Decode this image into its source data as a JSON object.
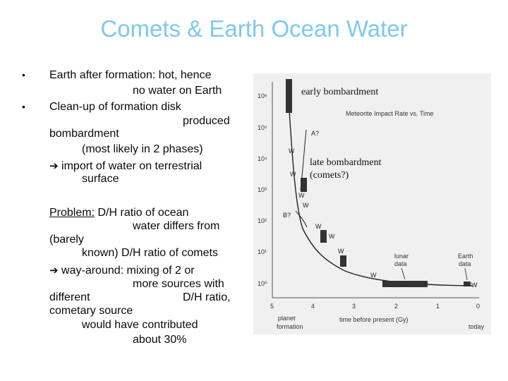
{
  "title": "Comets & Earth Ocean Water",
  "bullets": [
    {
      "lines": [
        "Earth after formation: hot, hence",
        "no water on Earth"
      ]
    },
    {
      "lines": [
        "Clean-up of formation disk",
        "produced",
        "bombardment",
        "(most likely in 2 phases)",
        "import of water on terrestrial",
        "surface"
      ]
    }
  ],
  "problem": {
    "label": "Problem:",
    "lines": [
      "D/H ratio of ocean",
      "water differs from",
      "(barely",
      "known) D/H ratio of comets",
      "way-around: mixing of 2 or",
      "more sources with",
      "different",
      "D/H ratio,",
      "cometary source",
      "would have contributed",
      "about 30%"
    ]
  },
  "figure": {
    "annotations": {
      "early": "early bombardment",
      "late_1": "late bombardment",
      "late_2": "(comets?)"
    },
    "chart_title": "Meteorite Impact Rate vs. Time",
    "y_ticks": [
      "10⁶",
      "10⁵",
      "10⁴",
      "10³",
      "10²",
      "10¹",
      "10⁰"
    ],
    "x_ticks": [
      "5",
      "4",
      "3",
      "2",
      "1",
      "0"
    ],
    "x_label": "time before present (Gy)",
    "planet_formation_1": "planet",
    "planet_formation_2": "formation",
    "today": "today",
    "lunar_1": "lunar",
    "lunar_2": "data",
    "earth_1": "Earth",
    "earth_2": "data",
    "marker_a": "A?",
    "marker_b": "B?",
    "marker_w": "W"
  }
}
